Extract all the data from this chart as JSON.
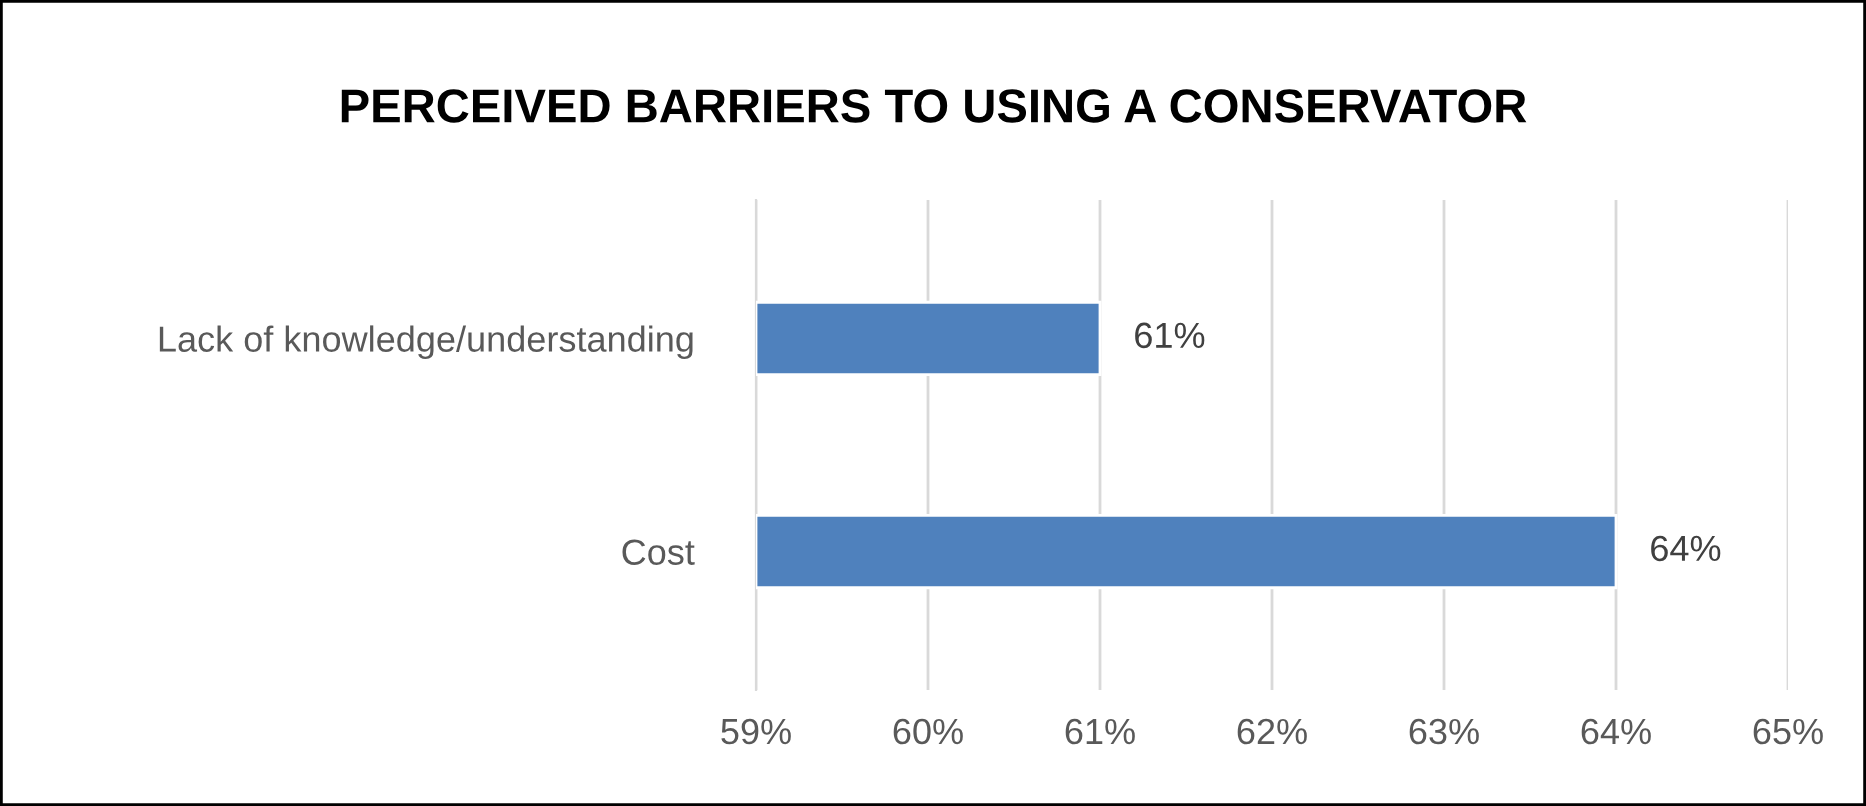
{
  "chart_data": {
    "type": "bar",
    "orientation": "horizontal",
    "title": "PERCEIVED BARRIERS TO USING A CONSERVATOR",
    "categories": [
      "Lack of knowledge/understanding",
      "Cost"
    ],
    "values": [
      61,
      64
    ],
    "value_labels": [
      "61%",
      "64%"
    ],
    "color": "#4f81bd",
    "xlim": [
      59,
      65
    ],
    "xticks": [
      {
        "value": 59,
        "label": "59%"
      },
      {
        "value": 60,
        "label": "60%"
      },
      {
        "value": 61,
        "label": "61%"
      },
      {
        "value": 62,
        "label": "62%"
      },
      {
        "value": 63,
        "label": "63%"
      },
      {
        "value": 64,
        "label": "64%"
      },
      {
        "value": 65,
        "label": "65%"
      }
    ],
    "grid": "x",
    "legend": false
  }
}
